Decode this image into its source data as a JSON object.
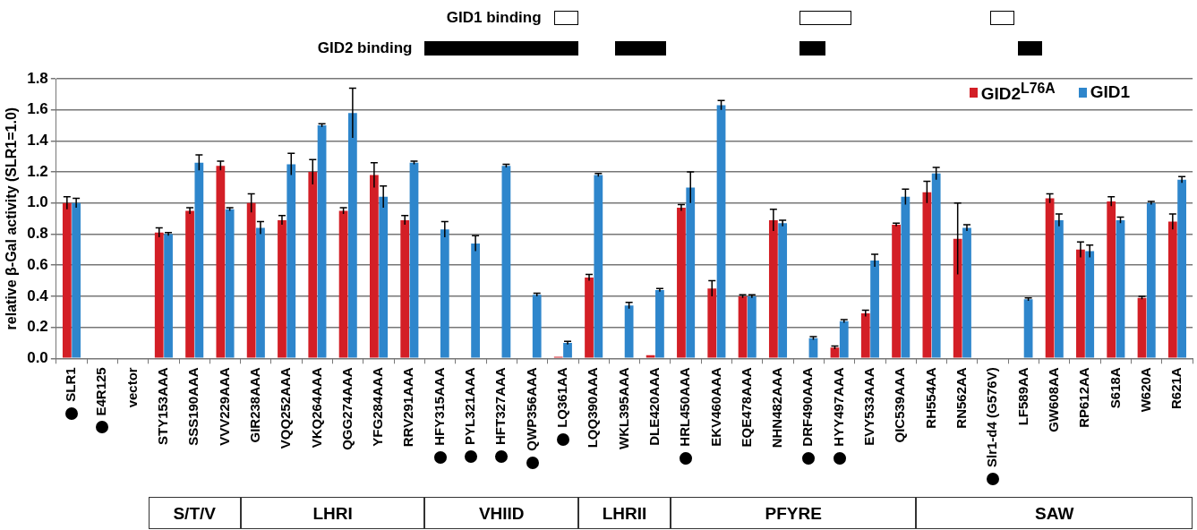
{
  "chart_data": {
    "type": "bar",
    "ylabel": "relative β-Gal activity (SLR1=1.0)",
    "categories": [
      "SLR1",
      "E4R125",
      "vector",
      "STY153AAA",
      "SSS190AAA",
      "VVV229AAA",
      "GIR238AAA",
      "VQQ252AAA",
      "VKQ264AAA",
      "QGG274AAA",
      "YFG284AAA",
      "RRV291AAA",
      "HFY315AAA",
      "PYL321AAA",
      "HFT327AAA",
      "QWP356AAA",
      "LQ361AA",
      "LQQ390AAA",
      "WKL395AAA",
      "DLE420AAA",
      "HRL450AAA",
      "EKV460AAA",
      "EQE478AAA",
      "NHN482AAA",
      "DRF490AAA",
      "HYY497AAA",
      "EVY533AAA",
      "QIC539AAA",
      "RH554AA",
      "RN562AA",
      "Slr1-d4 (G576V)",
      "LF589AA",
      "GW608AA",
      "RP612AA",
      "S618A",
      "W620A",
      "R621A"
    ],
    "series": [
      {
        "name": "GID2$^{L76A}$",
        "color": "#d31f26",
        "values": [
          1.0,
          0,
          0,
          0.81,
          0.95,
          1.24,
          1.0,
          0.89,
          1.2,
          0.95,
          1.18,
          0.89,
          0,
          0,
          0,
          0,
          0.01,
          0.52,
          0,
          0.02,
          0.97,
          0.45,
          0.4,
          0.89,
          0,
          0.07,
          0.29,
          0.86,
          1.07,
          0.77,
          0,
          0,
          1.03,
          0.7,
          1.01,
          0.39,
          0.88
        ],
        "errors": [
          0.04,
          null,
          null,
          0.03,
          0.02,
          0.03,
          0.06,
          0.03,
          0.08,
          0.02,
          0.08,
          0.03,
          null,
          null,
          null,
          null,
          null,
          0.02,
          null,
          null,
          0.02,
          0.05,
          0.01,
          0.07,
          null,
          0.01,
          0.02,
          0.01,
          0.07,
          0.23,
          null,
          null,
          0.03,
          0.05,
          0.03,
          0.01,
          0.05
        ]
      },
      {
        "name": "GID1",
        "color": "#2e86cc",
        "values": [
          1.0,
          0,
          0,
          0.8,
          1.26,
          0.96,
          0.84,
          1.25,
          1.5,
          1.58,
          1.04,
          1.26,
          0.83,
          0.74,
          1.24,
          0.41,
          0.1,
          1.18,
          0.34,
          0.44,
          1.1,
          1.63,
          0.4,
          0.87,
          0.13,
          0.24,
          0.63,
          1.04,
          1.19,
          0.84,
          0,
          0.38,
          0.89,
          0.69,
          0.89,
          1.0,
          1.15
        ],
        "errors": [
          0.03,
          null,
          null,
          0.01,
          0.05,
          0.01,
          0.04,
          0.07,
          0.01,
          0.16,
          0.07,
          0.01,
          0.05,
          0.05,
          0.01,
          0.01,
          0.01,
          0.01,
          0.02,
          0.01,
          0.1,
          0.03,
          0.01,
          0.02,
          0.01,
          0.01,
          0.04,
          0.05,
          0.04,
          0.02,
          null,
          0.01,
          0.04,
          0.04,
          0.02,
          0.01,
          0.02
        ]
      }
    ],
    "ylim": [
      0,
      1.8
    ],
    "yticks": [
      {
        "value": 0,
        "label": "0.0"
      },
      {
        "value": 0.2,
        "label": "0.2"
      },
      {
        "value": 0.4,
        "label": "0.4"
      },
      {
        "value": 0.6,
        "label": "0.6"
      },
      {
        "value": 0.8,
        "label": "0.8"
      },
      {
        "value": 1.0,
        "label": "1.0"
      },
      {
        "value": 1.2,
        "label": "1.2"
      },
      {
        "value": 1.4,
        "label": "1.4"
      },
      {
        "value": 1.6,
        "label": "1.6"
      },
      {
        "value": 1.8,
        "label": "1.8"
      }
    ],
    "grid": "y",
    "legend": "top right",
    "annotations": [
      "GID1 binding",
      "GID2 binding",
      "S/T/V",
      "LHRI",
      "VHIID",
      "LHRII",
      "PFYRE",
      "SAW"
    ]
  }
}
